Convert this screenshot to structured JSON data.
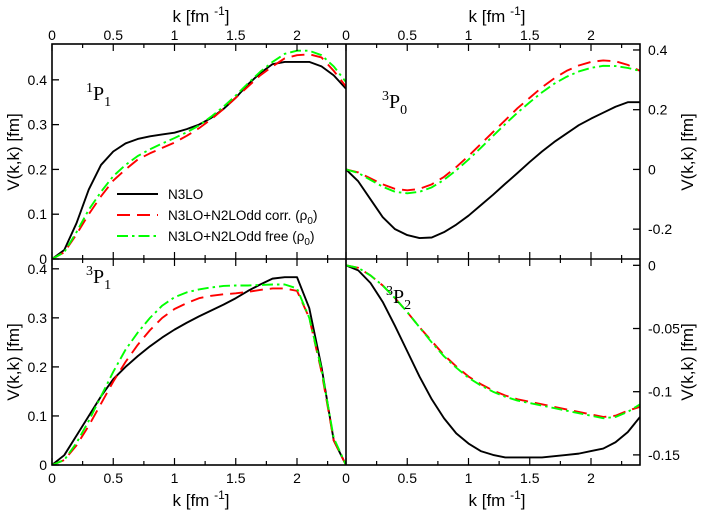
{
  "chart_data": {
    "type": "line",
    "x_axis_label": "k [fm",
    "x_axis_label_sup": "-1",
    "x_axis_label_close": "]",
    "y_axis_label": "V(k,k) [fm]",
    "x_ticks": [
      "0",
      "0.5",
      "1",
      "1.5",
      "2"
    ],
    "x_ticks_right_bottom": [
      "0",
      "0.5",
      "1",
      "1.5",
      "2"
    ],
    "legend": [
      {
        "label": "N3LO",
        "suffix": "",
        "color": "#000000",
        "style": "solid"
      },
      {
        "label": "N3LO+N2LOdd corr. (ρ",
        "suffix": ")",
        "color": "#ff0000",
        "style": "dashed"
      },
      {
        "label": "N3LO+N2LOdd free (ρ",
        "suffix": ")",
        "color": "#00ff00",
        "style": "dashdot"
      }
    ],
    "legend_sub": "0",
    "panels": [
      {
        "id": "1P1",
        "sup": "1",
        "main": "P",
        "sub": "1",
        "xlim": [
          0,
          2.4
        ],
        "ylim": [
          0,
          0.48
        ],
        "y_ticks": [
          0,
          0.1,
          0.2,
          0.3,
          0.4
        ],
        "y_tick_labels": [
          "0",
          "0.1",
          "0.2",
          "0.3",
          "0.4"
        ],
        "x": [
          0,
          0.1,
          0.2,
          0.3,
          0.4,
          0.5,
          0.6,
          0.7,
          0.8,
          0.9,
          1.0,
          1.1,
          1.2,
          1.3,
          1.4,
          1.5,
          1.6,
          1.7,
          1.8,
          1.9,
          2.0,
          2.1,
          2.2,
          2.3,
          2.4
        ],
        "series": [
          {
            "name": "N3LO",
            "values": [
              0,
              0.02,
              0.08,
              0.155,
              0.21,
              0.24,
              0.258,
              0.268,
              0.274,
              0.278,
              0.282,
              0.29,
              0.3,
              0.315,
              0.335,
              0.36,
              0.39,
              0.415,
              0.435,
              0.44,
              0.44,
              0.44,
              0.43,
              0.41,
              0.38
            ]
          },
          {
            "name": "N3LO+N2LOdd corr.",
            "values": [
              0,
              0.015,
              0.055,
              0.1,
              0.14,
              0.175,
              0.2,
              0.222,
              0.236,
              0.248,
              0.26,
              0.275,
              0.292,
              0.312,
              0.335,
              0.36,
              0.385,
              0.41,
              0.43,
              0.448,
              0.455,
              0.457,
              0.45,
              0.42,
              0.385
            ]
          },
          {
            "name": "N3LO+N2LOdd free",
            "values": [
              0,
              0.015,
              0.06,
              0.11,
              0.15,
              0.185,
              0.21,
              0.23,
              0.245,
              0.258,
              0.27,
              0.283,
              0.298,
              0.318,
              0.34,
              0.365,
              0.392,
              0.418,
              0.44,
              0.458,
              0.465,
              0.465,
              0.455,
              0.43,
              0.395
            ]
          }
        ]
      },
      {
        "id": "3P0",
        "sup": "3",
        "main": "P",
        "sub": "0",
        "xlim": [
          0,
          2.4
        ],
        "ylim": [
          -0.3,
          0.42
        ],
        "y_ticks": [
          -0.2,
          0,
          0.2,
          0.4
        ],
        "y_tick_labels": [
          "-0.2",
          "0",
          "0.2",
          "0.4"
        ],
        "x": [
          0,
          0.1,
          0.2,
          0.3,
          0.4,
          0.5,
          0.6,
          0.7,
          0.8,
          0.9,
          1.0,
          1.1,
          1.2,
          1.3,
          1.4,
          1.5,
          1.6,
          1.7,
          1.8,
          1.9,
          2.0,
          2.1,
          2.2,
          2.3,
          2.4
        ],
        "series": [
          {
            "name": "N3LO",
            "values": [
              0,
              -0.04,
              -0.1,
              -0.16,
              -0.2,
              -0.22,
              -0.23,
              -0.228,
              -0.21,
              -0.185,
              -0.155,
              -0.12,
              -0.085,
              -0.048,
              -0.012,
              0.025,
              0.06,
              0.092,
              0.12,
              0.148,
              0.17,
              0.19,
              0.21,
              0.225,
              0.225
            ]
          },
          {
            "name": "N3LO+N2LOdd corr.",
            "values": [
              0,
              -0.01,
              -0.03,
              -0.05,
              -0.065,
              -0.07,
              -0.065,
              -0.05,
              -0.025,
              0.008,
              0.045,
              0.085,
              0.125,
              0.165,
              0.205,
              0.24,
              0.275,
              0.305,
              0.33,
              0.348,
              0.36,
              0.365,
              0.362,
              0.35,
              0.33
            ]
          },
          {
            "name": "N3LO+N2LOdd free",
            "values": [
              0,
              -0.012,
              -0.035,
              -0.058,
              -0.075,
              -0.08,
              -0.075,
              -0.06,
              -0.035,
              -0.003,
              0.033,
              0.072,
              0.112,
              0.152,
              0.19,
              0.225,
              0.258,
              0.287,
              0.31,
              0.328,
              0.34,
              0.347,
              0.346,
              0.34,
              0.33
            ]
          }
        ]
      },
      {
        "id": "3P1",
        "sup": "3",
        "main": "P",
        "sub": "1",
        "xlim": [
          0,
          2.4
        ],
        "ylim": [
          0,
          0.42
        ],
        "y_ticks": [
          0,
          0.1,
          0.2,
          0.3,
          0.4
        ],
        "y_tick_labels": [
          "0",
          "0.1",
          "0.2",
          "0.3",
          "0.4"
        ],
        "x": [
          0,
          0.1,
          0.2,
          0.3,
          0.4,
          0.5,
          0.6,
          0.7,
          0.8,
          0.9,
          1.0,
          1.1,
          1.2,
          1.3,
          1.4,
          1.5,
          1.6,
          1.7,
          1.8,
          1.9,
          2.0,
          2.1,
          2.2,
          2.3,
          2.4
        ],
        "series": [
          {
            "name": "N3LO",
            "values": [
              0,
              0.02,
              0.06,
              0.1,
              0.14,
              0.175,
              0.2,
              0.222,
              0.242,
              0.26,
              0.276,
              0.29,
              0.303,
              0.315,
              0.327,
              0.34,
              0.355,
              0.368,
              0.38,
              0.383,
              0.383,
              0.32,
              0.2,
              0.05,
              0
            ]
          },
          {
            "name": "N3LO+N2LOdd corr.",
            "values": [
              0,
              0.01,
              0.04,
              0.08,
              0.125,
              0.17,
              0.21,
              0.245,
              0.275,
              0.3,
              0.318,
              0.33,
              0.34,
              0.345,
              0.348,
              0.35,
              0.353,
              0.357,
              0.36,
              0.36,
              0.355,
              0.3,
              0.19,
              0.05,
              0
            ]
          },
          {
            "name": "N3LO+N2LOdd free",
            "values": [
              0,
              0.01,
              0.045,
              0.09,
              0.14,
              0.19,
              0.235,
              0.27,
              0.3,
              0.325,
              0.342,
              0.352,
              0.358,
              0.362,
              0.365,
              0.366,
              0.366,
              0.367,
              0.368,
              0.368,
              0.36,
              0.3,
              0.195,
              0.055,
              0
            ]
          }
        ]
      },
      {
        "id": "3P2",
        "sup": "3",
        "main": "P",
        "sub": "2",
        "xlim": [
          0,
          2.4
        ],
        "ylim": [
          -0.158,
          0.005
        ],
        "y_ticks": [
          -0.15,
          -0.1,
          -0.05,
          0
        ],
        "y_tick_labels": [
          "-0.15",
          "-0.1",
          "-0.05",
          "0"
        ],
        "x": [
          0,
          0.1,
          0.2,
          0.3,
          0.4,
          0.5,
          0.6,
          0.7,
          0.8,
          0.9,
          1.0,
          1.1,
          1.2,
          1.3,
          1.4,
          1.5,
          1.6,
          1.7,
          1.8,
          1.9,
          2.0,
          2.1,
          2.2,
          2.3,
          2.4
        ],
        "series": [
          {
            "name": "N3LO",
            "values": [
              0,
              -0.004,
              -0.014,
              -0.029,
              -0.048,
              -0.068,
              -0.088,
              -0.106,
              -0.121,
              -0.133,
              -0.141,
              -0.147,
              -0.15,
              -0.152,
              -0.152,
              -0.152,
              -0.152,
              -0.151,
              -0.15,
              -0.149,
              -0.147,
              -0.145,
              -0.14,
              -0.132,
              -0.12
            ]
          },
          {
            "name": "N3LO+N2LOdd corr.",
            "values": [
              0,
              -0.002,
              -0.008,
              -0.016,
              -0.026,
              -0.037,
              -0.049,
              -0.06,
              -0.071,
              -0.08,
              -0.088,
              -0.094,
              -0.099,
              -0.103,
              -0.106,
              -0.108,
              -0.11,
              -0.112,
              -0.114,
              -0.116,
              -0.118,
              -0.12,
              -0.119,
              -0.115,
              -0.112
            ]
          },
          {
            "name": "N3LO+N2LOdd free",
            "values": [
              0,
              -0.002,
              -0.008,
              -0.016,
              -0.026,
              -0.037,
              -0.049,
              -0.061,
              -0.072,
              -0.081,
              -0.089,
              -0.095,
              -0.1,
              -0.104,
              -0.107,
              -0.109,
              -0.111,
              -0.113,
              -0.115,
              -0.117,
              -0.119,
              -0.121,
              -0.12,
              -0.116,
              -0.11
            ]
          }
        ]
      }
    ]
  }
}
